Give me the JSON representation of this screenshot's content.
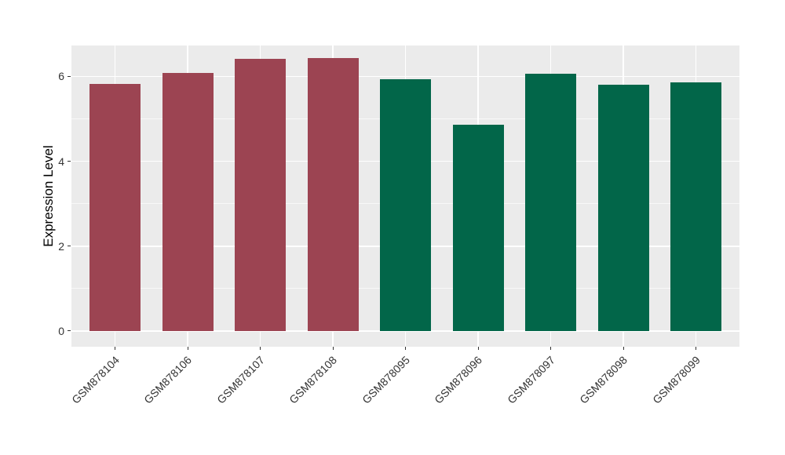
{
  "chart_data": {
    "type": "bar",
    "title": "",
    "xlabel": "",
    "ylabel": "Expression Level",
    "categories": [
      "GSM878104",
      "GSM878106",
      "GSM878107",
      "GSM878108",
      "GSM878095",
      "GSM878096",
      "GSM878097",
      "GSM878098",
      "GSM878099"
    ],
    "values": [
      5.83,
      6.09,
      6.41,
      6.44,
      5.93,
      4.87,
      6.07,
      5.8,
      5.87
    ],
    "bar_colors": [
      "#9C4452",
      "#9C4452",
      "#9C4452",
      "#9C4452",
      "#026649",
      "#026649",
      "#026649",
      "#026649",
      "#026649"
    ],
    "group_colors": {
      "red_group": "#9C4452",
      "green_group": "#026649"
    },
    "yticks": [
      0,
      2,
      4,
      6
    ],
    "ytick_labels": [
      "0",
      "2",
      "4",
      "6"
    ],
    "yticks_minor": [
      1,
      3,
      5
    ],
    "ylim": [
      -0.37,
      6.73
    ],
    "bar_width_fraction": 0.7,
    "grid": "on",
    "legend": "none",
    "panel_bg": "#EBEBEB",
    "grid_color": "#FFFFFF",
    "tick_color": "#333333"
  }
}
